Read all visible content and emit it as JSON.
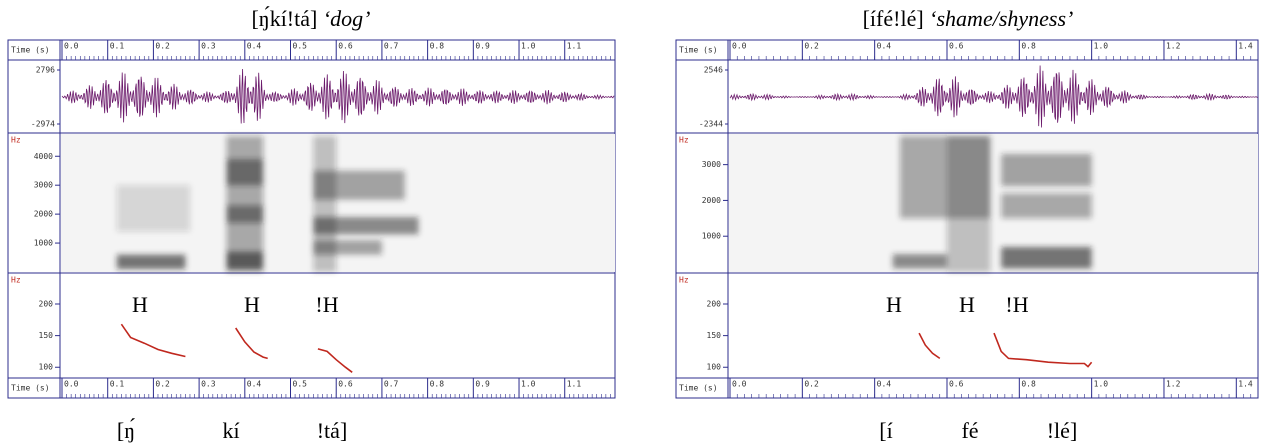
{
  "panels": [
    {
      "title": "[ŋ́kí!tá]",
      "gloss": "‘dog’",
      "time_axis": {
        "label": "Time (s)",
        "xlim": [
          0,
          1.21
        ],
        "xticks": [
          {
            "value": 0,
            "label": "0.0"
          },
          {
            "value": 0.1,
            "label": "0.1"
          },
          {
            "value": 0.2,
            "label": "0.2"
          },
          {
            "value": 0.3,
            "label": "0.3"
          },
          {
            "value": 0.4,
            "label": "0.4"
          },
          {
            "value": 0.5,
            "label": "0.5"
          },
          {
            "value": 0.6,
            "label": "0.6"
          },
          {
            "value": 0.7,
            "label": "0.7"
          },
          {
            "value": 0.8,
            "label": "0.8"
          },
          {
            "value": 0.9,
            "label": "0.9"
          },
          {
            "value": 1,
            "label": "1.0"
          },
          {
            "value": 1.1,
            "label": "1.1"
          }
        ]
      },
      "waveform": {
        "ylim": [
          -2974,
          2796
        ],
        "yticks": [
          -2974,
          2796
        ]
      },
      "spectrogram": {
        "unit": "Hz",
        "ylim": [
          0,
          4700
        ],
        "yticks": [
          1000,
          2000,
          3000,
          4000
        ]
      },
      "pitch": {
        "unit": "Hz",
        "ylim": [
          83,
          249
        ],
        "yticks": [
          100,
          150,
          200
        ],
        "color": "#c0281e",
        "tones": [
          "H",
          "H",
          "!H"
        ],
        "segments": [
          {
            "x": [
              0.13,
              0.15,
              0.18,
              0.21,
              0.24,
              0.27
            ],
            "values": [
              168,
              147,
              138,
              128,
              122,
              117
            ]
          },
          {
            "x": [
              0.38,
              0.4,
              0.42,
              0.44,
              0.45
            ],
            "values": [
              162,
              140,
              124,
              116,
              114
            ]
          },
          {
            "x": [
              0.56,
              0.58,
              0.6,
              0.62,
              0.635
            ],
            "values": [
              129,
              125,
              112,
              100,
              92
            ]
          }
        ]
      },
      "transcription": [
        "[ŋ́",
        "kí",
        "!tá]"
      ]
    },
    {
      "title": "[ífé!lé]",
      "gloss": "‘shame/shyness’",
      "time_axis": {
        "label": "Time (s)",
        "xlim": [
          0,
          1.46
        ],
        "xticks": [
          {
            "value": 0,
            "label": "0.0"
          },
          {
            "value": 0.2,
            "label": "0.2"
          },
          {
            "value": 0.4,
            "label": "0.4"
          },
          {
            "value": 0.6,
            "label": "0.6"
          },
          {
            "value": 0.8,
            "label": "0.8"
          },
          {
            "value": 1,
            "label": "1.0"
          },
          {
            "value": 1.2,
            "label": "1.2"
          },
          {
            "value": 1.4,
            "label": "1.4"
          }
        ]
      },
      "waveform": {
        "ylim": [
          -2344,
          2546
        ],
        "yticks": [
          -2344,
          2546
        ]
      },
      "spectrogram": {
        "unit": "Hz",
        "ylim": [
          0,
          3800
        ],
        "yticks": [
          1000,
          2000,
          3000
        ]
      },
      "pitch": {
        "unit": "Hz",
        "ylim": [
          83,
          249
        ],
        "yticks": [
          100,
          150,
          200
        ],
        "color": "#c0281e",
        "tones": [
          "H",
          "H",
          "!H"
        ],
        "segments": [
          {
            "x": [
              0.523,
              0.54,
              0.56,
              0.58
            ],
            "values": [
              154,
              135,
              122,
              114
            ]
          },
          {
            "x": [
              0.73,
              0.75,
              0.77,
              0.82,
              0.88,
              0.94,
              0.98,
              0.99,
              1.0
            ],
            "values": [
              154,
              125,
              114,
              112,
              108,
              106,
              106,
              101,
              108
            ]
          }
        ]
      },
      "transcription": [
        "[í",
        "fé",
        "!lé]"
      ]
    }
  ]
}
